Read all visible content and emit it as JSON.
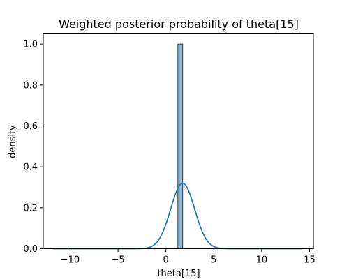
{
  "chart_data": {
    "type": "bar",
    "title": "Weighted posterior probability of theta[15]",
    "xlabel": "theta[15]",
    "ylabel": "density",
    "xlim": [
      -12.8,
      15.4
    ],
    "ylim": [
      0,
      1.05
    ],
    "x_ticks": [
      -10,
      -5,
      0,
      5,
      10,
      15
    ],
    "y_ticks": [
      0.0,
      0.2,
      0.4,
      0.6,
      0.8,
      1.0
    ],
    "x_tick_labels": [
      "−10",
      "−5",
      "0",
      "5",
      "10",
      "15"
    ],
    "y_tick_labels": [
      "0.0",
      "0.2",
      "0.4",
      "0.6",
      "0.8",
      "1.0"
    ],
    "histogram": [
      {
        "x0": 1.25,
        "x1": 1.75,
        "value": 1.0
      }
    ],
    "kde": {
      "mean": 1.75,
      "sd": 1.25,
      "peak": 0.32,
      "x_range": [
        -11.8,
        14.2
      ]
    },
    "grid": false,
    "colors": {
      "bar_fill": "#1f77b4",
      "bar_edge": "#2b3a45",
      "line": "#1f77b4"
    }
  }
}
